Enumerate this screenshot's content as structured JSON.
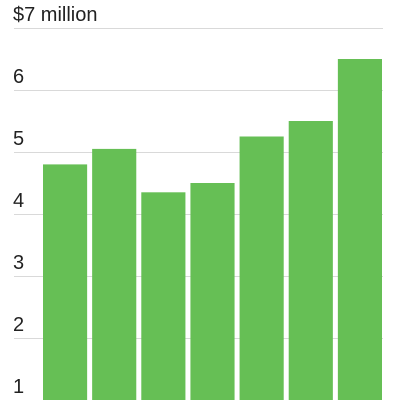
{
  "chart_data": {
    "type": "bar",
    "title": "",
    "xlabel": "",
    "ylabel": "",
    "ylim": [
      1,
      7
    ],
    "yticks": [
      1,
      2,
      3,
      4,
      5,
      6,
      7
    ],
    "ytick_labels": [
      "1",
      "2",
      "3",
      "4",
      "5",
      "6",
      "$7 million"
    ],
    "grid": true,
    "legend": "none",
    "bar_color": "#66bf55",
    "categories": [
      "",
      "",
      "",
      "",
      "",
      "",
      ""
    ],
    "values": [
      4.8,
      5.05,
      4.35,
      4.5,
      5.25,
      5.5,
      6.5
    ]
  }
}
